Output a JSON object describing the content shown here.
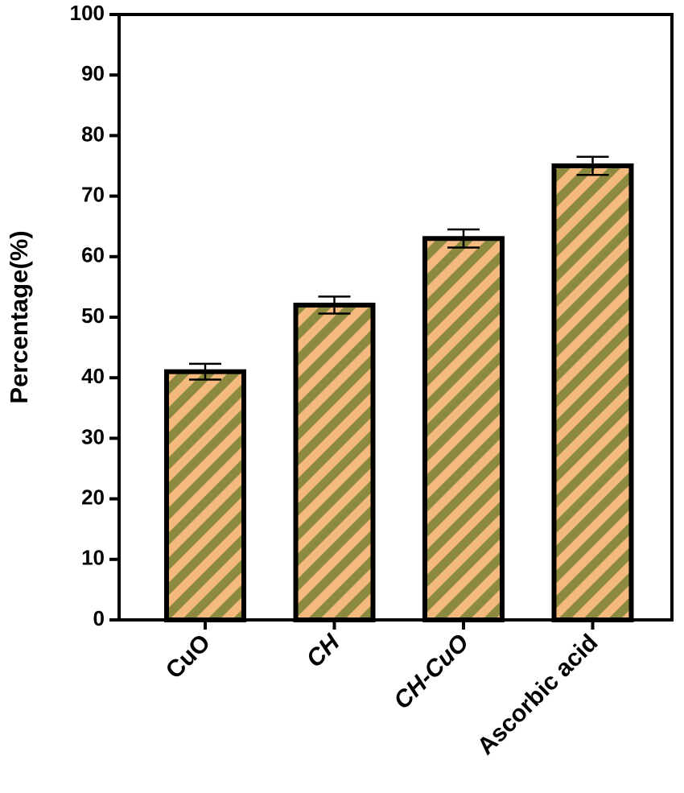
{
  "chart_data": {
    "type": "bar",
    "y_label": "Percentage(%)",
    "categories": [
      "CuO",
      "CH",
      "CH-CuO",
      "Ascorbic acid"
    ],
    "values": [
      41,
      52,
      63,
      75
    ],
    "errors": [
      1.3,
      1.4,
      1.5,
      1.5
    ],
    "color": "#f4b97e",
    "hatch_color": "#8b8a3e",
    "ylim": [
      0,
      100
    ],
    "yticks": [
      0,
      10,
      20,
      30,
      40,
      50,
      60,
      70,
      80,
      90,
      100
    ],
    "grid": false
  }
}
